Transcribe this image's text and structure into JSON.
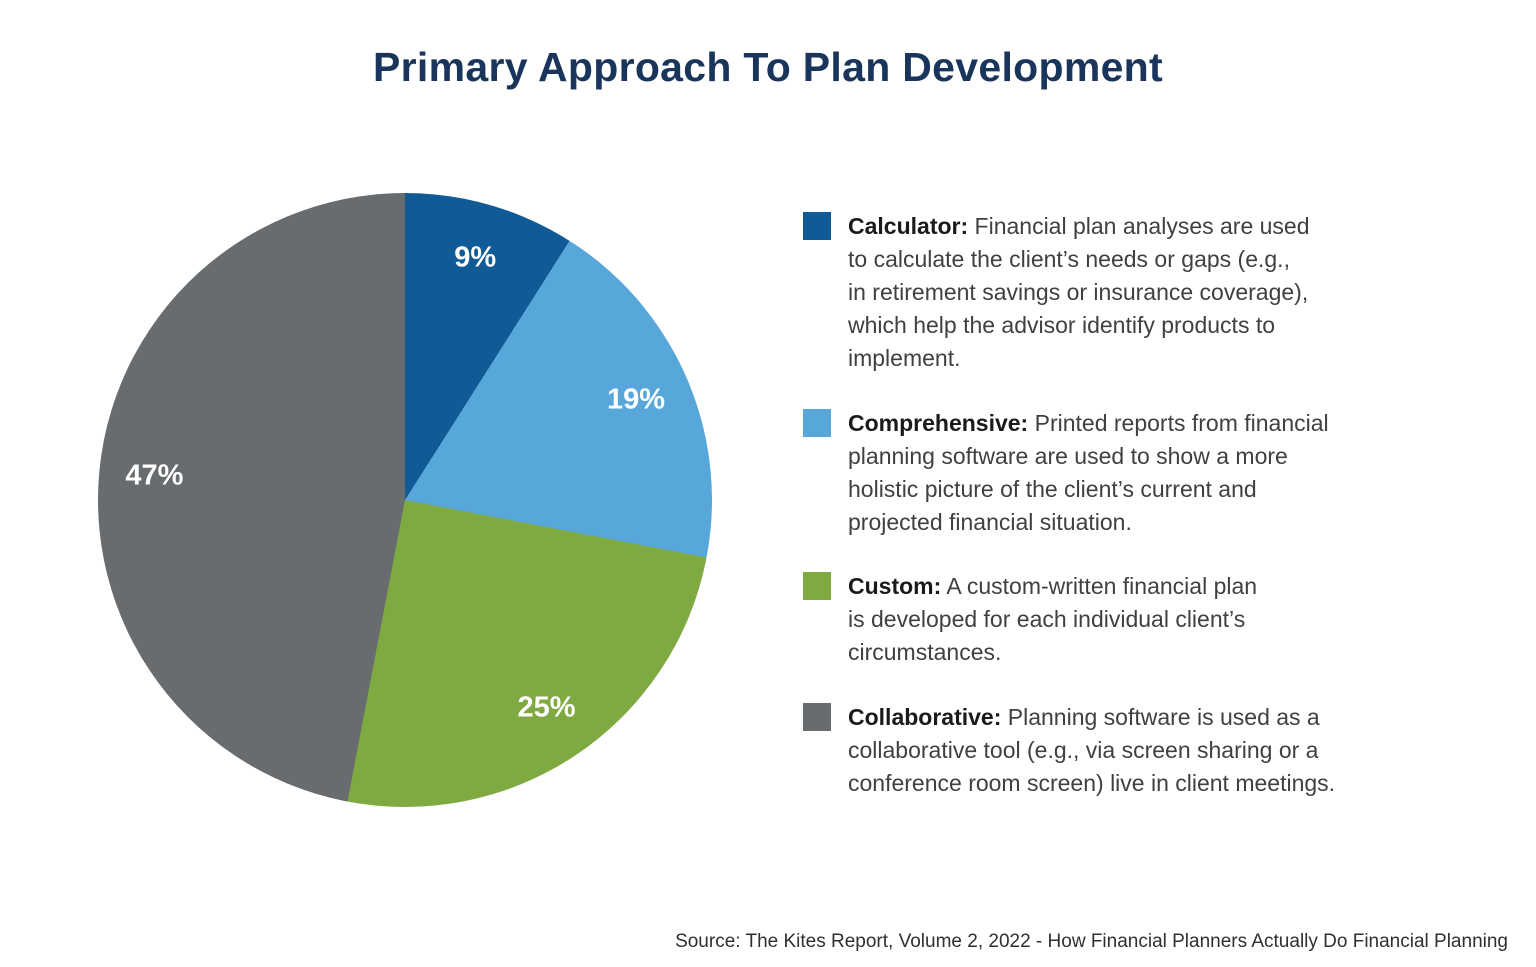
{
  "chart_data": {
    "type": "pie",
    "title": "Primary Approach To Plan Development",
    "start_angle_deg": 0,
    "direction": "clockwise",
    "legend_position": "right",
    "label_color": "#FFFFFF",
    "slices": [
      {
        "label": "Calculator",
        "value": 9,
        "pct_label": "9%",
        "color": "#105A95"
      },
      {
        "label": "Comprehensive",
        "value": 19,
        "pct_label": "19%",
        "color": "#58A7DB"
      },
      {
        "label": "Custom",
        "value": 25,
        "pct_label": "25%",
        "color": "#7FAA41"
      },
      {
        "label": "Collaborative",
        "value": 47,
        "pct_label": "47%",
        "color": "#686C6F"
      }
    ]
  },
  "legend": {
    "items": [
      {
        "term": "Calculator:",
        "description": "Financial plan analyses are used\nto calculate the client’s needs or gaps (e.g.,\nin retirement savings or insurance coverage),\nwhich help the advisor identify products to\nimplement.",
        "color": "#105A95"
      },
      {
        "term": "Comprehensive:",
        "description": "Printed reports from financial\nplanning software are used to show a more\nholistic picture of the client’s current and\nprojected financial situation.",
        "color": "#58A7DB"
      },
      {
        "term": "Custom:",
        "description": "A custom-written financial plan\nis developed for each individual client’s\ncircumstances.",
        "color": "#7FAA41"
      },
      {
        "term": "Collaborative:",
        "description": "Planning software is used as a\ncollaborative tool (e.g., via screen sharing or a\nconference room screen) live in client meetings.",
        "color": "#686C6F"
      }
    ]
  },
  "source": "Source: The Kites Report, Volume 2, 2022 - How Financial Planners Actually Do Financial Planning",
  "colors": {
    "title": "#1A355B",
    "background": "#FFFFFF"
  }
}
